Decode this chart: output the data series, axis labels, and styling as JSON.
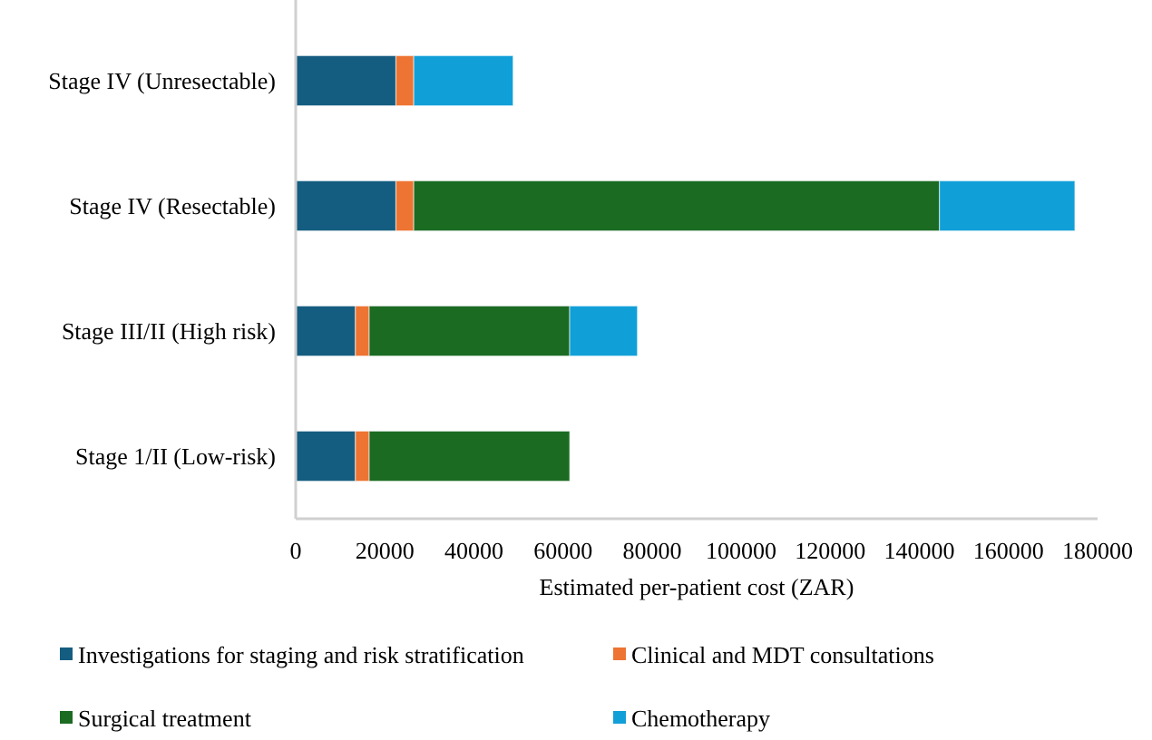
{
  "chart_data": {
    "type": "bar",
    "orientation": "horizontal",
    "stacked": true,
    "categories": [
      "Stage IV (Unresectable)",
      "Stage IV (Resectable)",
      "Stage III/II (High risk)",
      "Stage 1/II (Low-risk)"
    ],
    "series": [
      {
        "name": "Investigations for staging and risk stratification",
        "color": "#155d80",
        "values": [
          22500,
          22500,
          13400,
          13400
        ]
      },
      {
        "name": "Clinical and MDT consultations",
        "color": "#ed7432",
        "values": [
          4000,
          4000,
          3100,
          3100
        ]
      },
      {
        "name": "Surgical treatment",
        "color": "#1b6b23",
        "values": [
          null,
          118000,
          45000,
          45000
        ]
      },
      {
        "name": "Chemotherapy",
        "color": "#119fd8",
        "values": [
          22300,
          30400,
          15200,
          null
        ]
      }
    ],
    "xlabel": "Estimated per-patient cost (ZAR)",
    "xlim": [
      0,
      180000
    ],
    "xticks": [
      0,
      20000,
      40000,
      60000,
      80000,
      100000,
      120000,
      140000,
      160000,
      180000
    ],
    "grid": false,
    "legend": "bottom"
  }
}
